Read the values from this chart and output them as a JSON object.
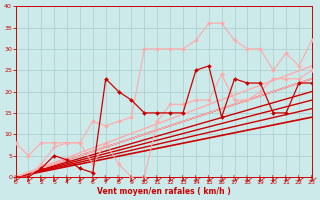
{
  "xlabel": "Vent moyen/en rafales ( km/h )",
  "xlim": [
    0,
    23
  ],
  "ylim": [
    0,
    40
  ],
  "yticks": [
    0,
    5,
    10,
    15,
    20,
    25,
    30,
    35,
    40
  ],
  "xticks": [
    0,
    1,
    2,
    3,
    4,
    5,
    6,
    7,
    8,
    9,
    10,
    11,
    12,
    13,
    14,
    15,
    16,
    17,
    18,
    19,
    20,
    21,
    22,
    23
  ],
  "bg_color": "#cceaea",
  "grid_color": "#aacccc",
  "series": [
    {
      "x": [
        0,
        1,
        2,
        3,
        4,
        5,
        6,
        7,
        8,
        9,
        10,
        11,
        12,
        13,
        14,
        15,
        16,
        17,
        18,
        19,
        20,
        21,
        22,
        23
      ],
      "y": [
        0,
        0,
        3,
        7,
        8,
        8,
        13,
        12,
        13,
        14,
        30,
        30,
        30,
        30,
        32,
        36,
        36,
        32,
        30,
        30,
        25,
        29,
        26,
        32
      ],
      "color": "#ffaaaa",
      "lw": 0.8,
      "marker": "D",
      "ms": 2.0,
      "zorder": 3
    },
    {
      "x": [
        0,
        1,
        2,
        3,
        4,
        5,
        6,
        7,
        8,
        9,
        10,
        11,
        12,
        13,
        14,
        15,
        16,
        17,
        18,
        19,
        20,
        21,
        22,
        23
      ],
      "y": [
        8,
        5,
        8,
        8,
        8,
        8,
        3,
        8,
        3,
        0,
        0,
        13,
        17,
        17,
        18,
        18,
        24,
        18,
        18,
        20,
        23,
        23,
        23,
        25
      ],
      "color": "#ffaaaa",
      "lw": 0.8,
      "marker": "D",
      "ms": 2.0,
      "zorder": 3
    },
    {
      "x": [
        0,
        1,
        2,
        3,
        4,
        5,
        6,
        7,
        8,
        9,
        10,
        11,
        12,
        13,
        14,
        15,
        16,
        17,
        18,
        19,
        20,
        21,
        22,
        23
      ],
      "y": [
        0,
        0,
        2,
        5,
        4,
        2,
        1,
        23,
        20,
        18,
        15,
        15,
        15,
        15,
        25,
        26,
        14,
        23,
        22,
        22,
        15,
        15,
        22,
        22
      ],
      "color": "#cc0000",
      "lw": 0.9,
      "marker": "D",
      "ms": 2.0,
      "zorder": 4
    },
    {
      "x": [
        0,
        23
      ],
      "y": [
        0,
        23
      ],
      "color": "#cc0000",
      "lw": 1.0,
      "marker": null,
      "ms": 0,
      "zorder": 2
    },
    {
      "x": [
        0,
        23
      ],
      "y": [
        0,
        20
      ],
      "color": "#cc0000",
      "lw": 1.0,
      "marker": null,
      "ms": 0,
      "zorder": 2
    },
    {
      "x": [
        0,
        23
      ],
      "y": [
        0,
        18
      ],
      "color": "#cc0000",
      "lw": 1.0,
      "marker": null,
      "ms": 0,
      "zorder": 2
    },
    {
      "x": [
        0,
        23
      ],
      "y": [
        0,
        16
      ],
      "color": "#cc0000",
      "lw": 1.0,
      "marker": null,
      "ms": 0,
      "zorder": 2
    },
    {
      "x": [
        0,
        23
      ],
      "y": [
        0,
        14
      ],
      "color": "#cc0000",
      "lw": 1.2,
      "marker": null,
      "ms": 0,
      "zorder": 2
    },
    {
      "x": [
        0,
        23
      ],
      "y": [
        0,
        26
      ],
      "color": "#ffaaaa",
      "lw": 1.0,
      "marker": null,
      "ms": 0,
      "zorder": 2
    },
    {
      "x": [
        0,
        23
      ],
      "y": [
        0,
        23
      ],
      "color": "#ffbbbb",
      "lw": 1.0,
      "marker": null,
      "ms": 0,
      "zorder": 2
    }
  ]
}
